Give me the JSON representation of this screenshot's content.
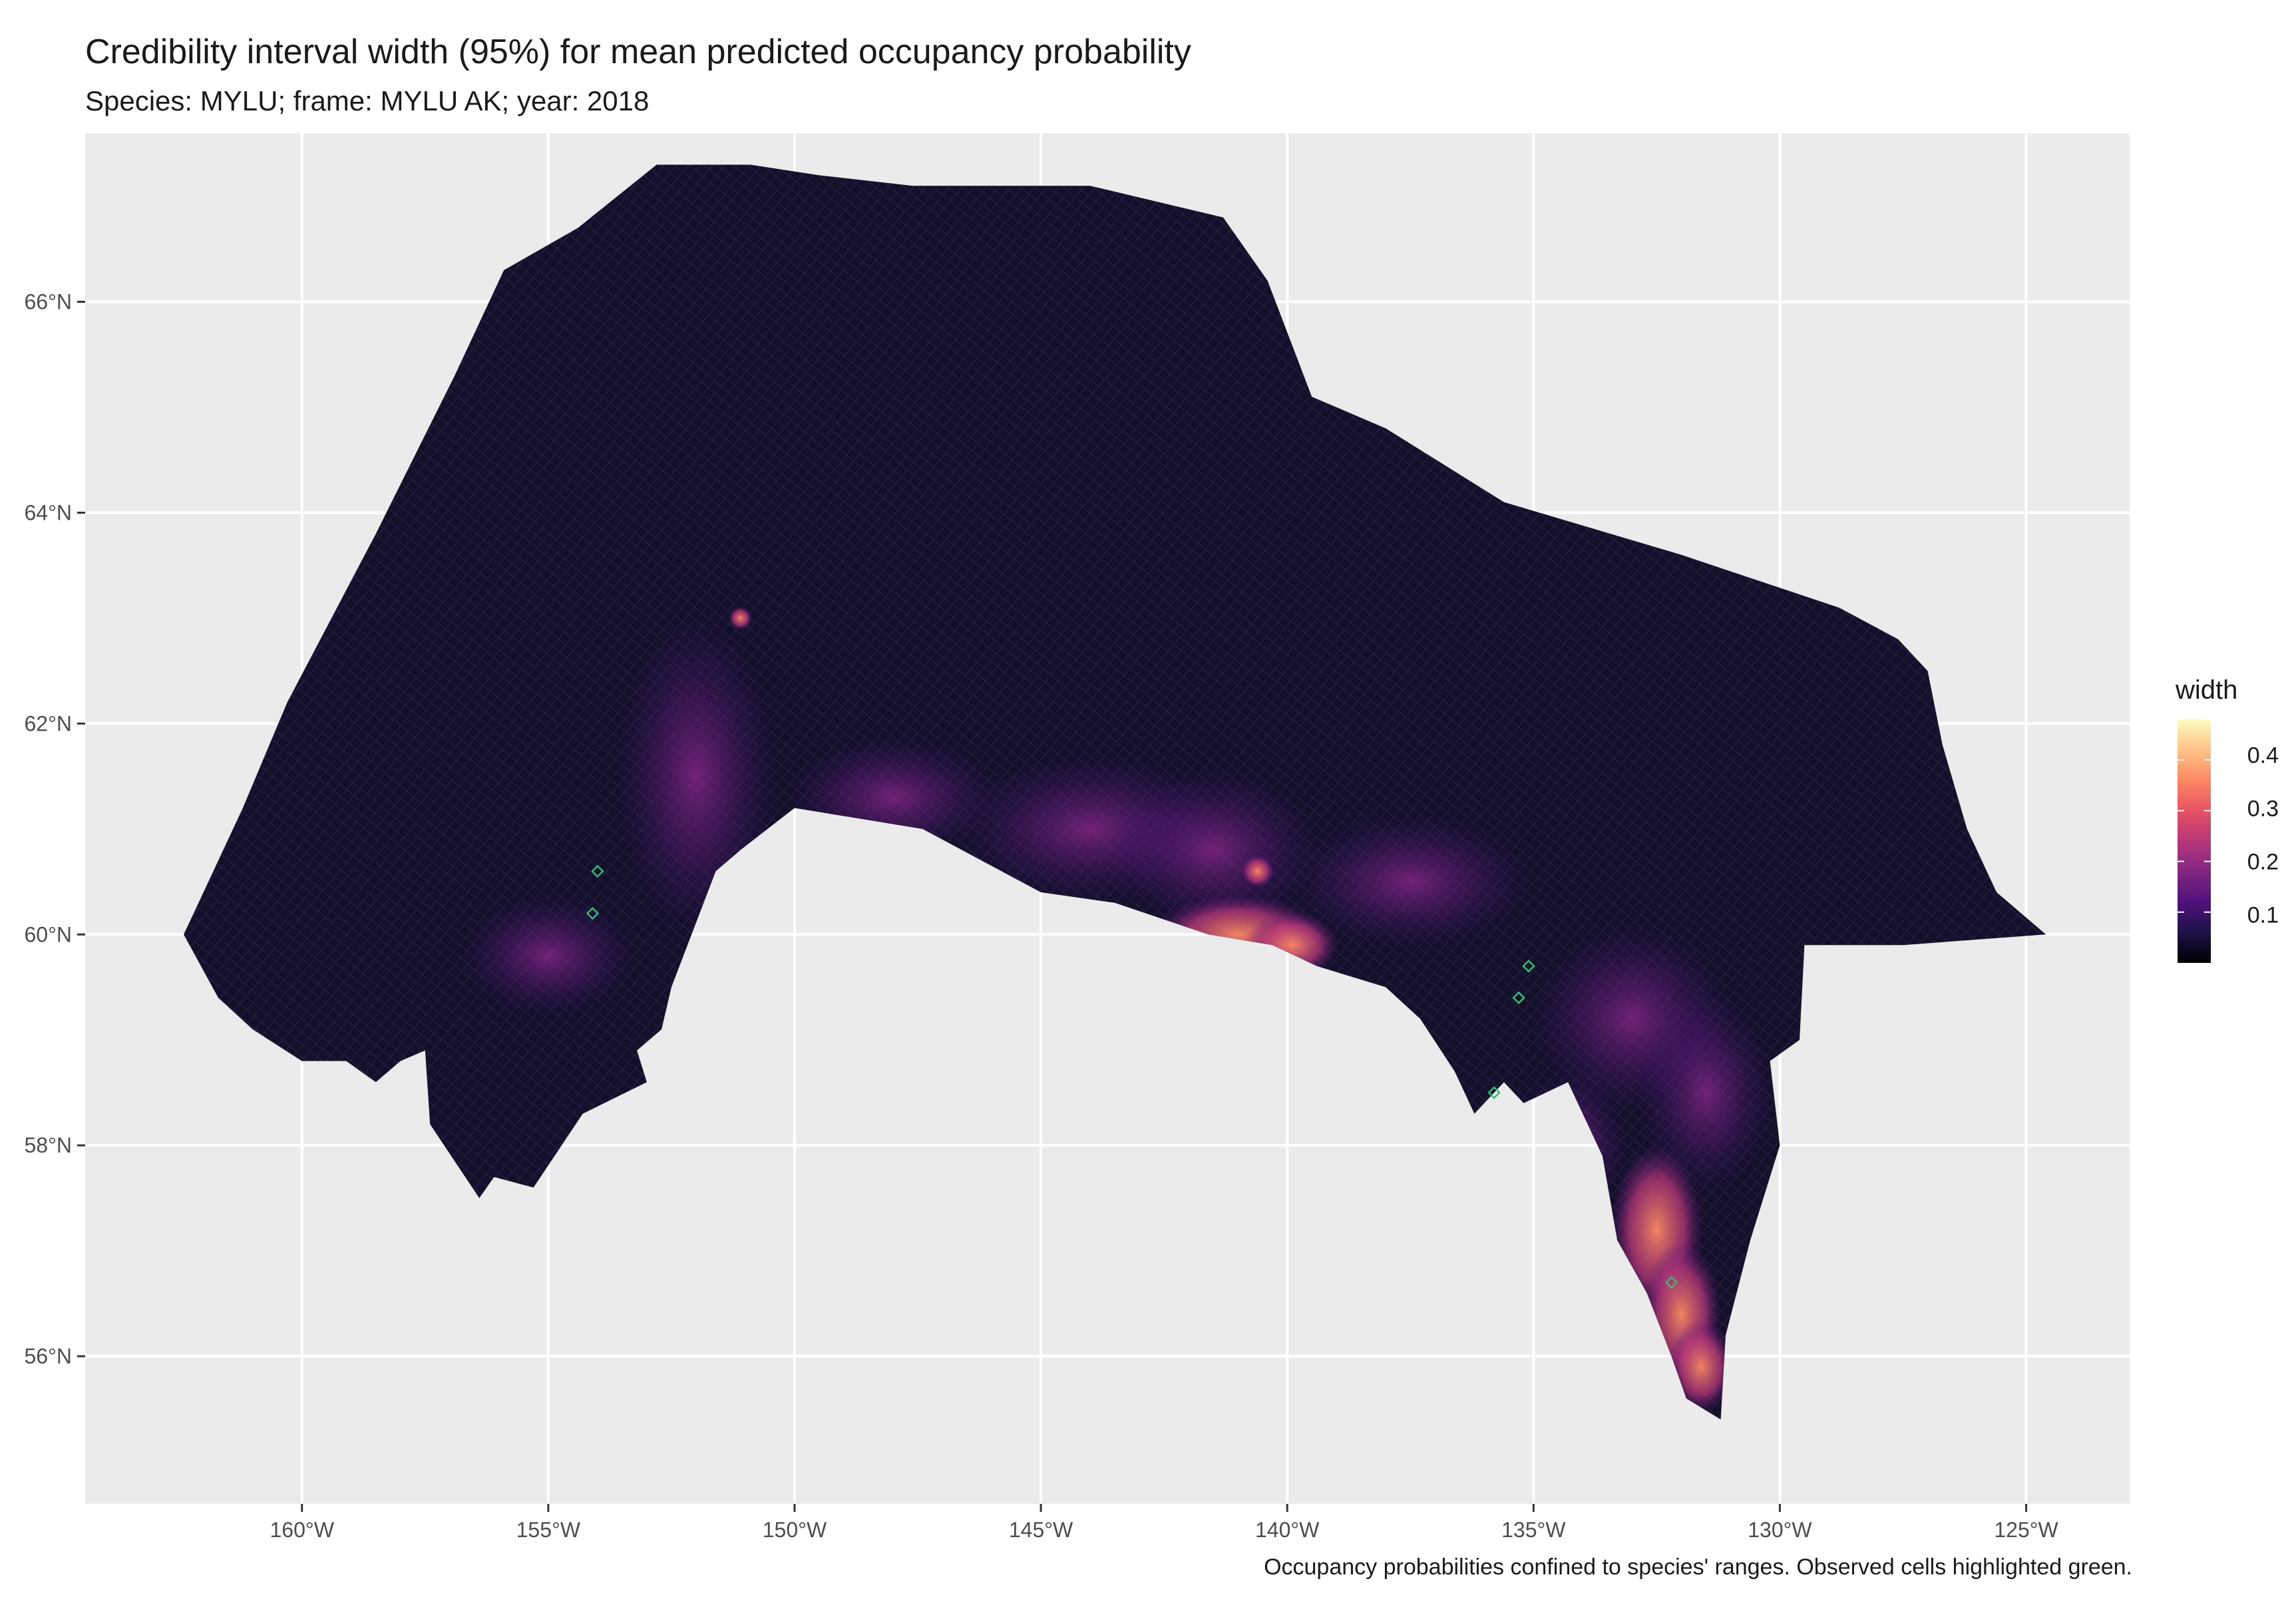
{
  "title": "Credibility interval width (95%) for mean predicted occupancy probability",
  "subtitle": "Species: MYLU; frame: MYLU AK; year: 2018",
  "caption": "Occupancy probabilities confined to species' ranges. Observed cells highlighted green.",
  "axes": {
    "x_ticks": [
      "160°W",
      "155°W",
      "150°W",
      "145°W",
      "140°W",
      "135°W",
      "130°W",
      "125°W"
    ],
    "x_values": [
      -160,
      -155,
      -150,
      -145,
      -140,
      -135,
      -130,
      -125
    ],
    "x_range": [
      -164.4,
      -122.9
    ],
    "y_ticks": [
      "56°N",
      "58°N",
      "60°N",
      "62°N",
      "64°N",
      "66°N"
    ],
    "y_values": [
      56,
      58,
      60,
      62,
      64,
      66
    ],
    "y_range": [
      54.6,
      67.6
    ],
    "grid": true
  },
  "legend": {
    "title": "width",
    "labels": [
      "0.1",
      "0.2",
      "0.3",
      "0.4"
    ],
    "values": [
      0.1,
      0.2,
      0.3,
      0.4
    ],
    "range": [
      0.0,
      0.48
    ],
    "placement": "right",
    "palette": [
      "#000004",
      "#1d1147",
      "#51127c",
      "#822681",
      "#b73779",
      "#e75263",
      "#fc8961",
      "#fec287",
      "#fcfdbf"
    ]
  },
  "colors": {
    "panel_background": "#ebebeb",
    "grid_major": "#ffffff",
    "region_base": "#14102a",
    "observed_highlight": "#2fbf71"
  }
}
